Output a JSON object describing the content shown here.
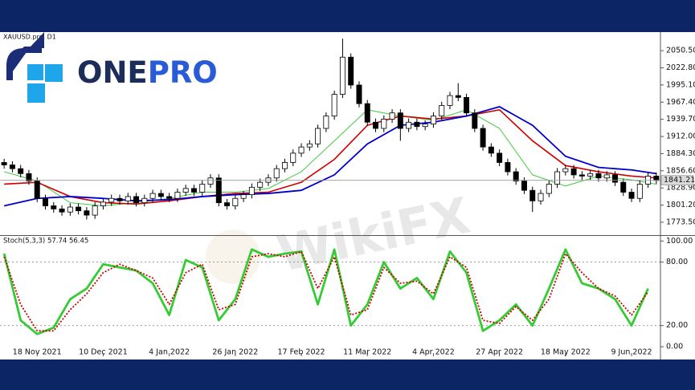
{
  "logo": {
    "part1": "ONE",
    "part2": "PRO"
  },
  "watermark": "WikiFX",
  "chart_data": [
    {
      "type": "candlestick",
      "title": "XAUUSD.pro, D1",
      "up_color": "#ffffff",
      "down_color": "#000000",
      "ylim": [
        1754,
        2074
      ],
      "yticks": [
        {
          "value": 2050.5,
          "label": "2050.50"
        },
        {
          "value": 2022.8,
          "label": "2022.80"
        },
        {
          "value": 1995.1,
          "label": "1995.10"
        },
        {
          "value": 1967.4,
          "label": "1967.40"
        },
        {
          "value": 1939.7,
          "label": "1939.70"
        },
        {
          "value": 1912,
          "label": "1912.00"
        },
        {
          "value": 1884.3,
          "label": "1884.30"
        },
        {
          "value": 1856.6,
          "label": "1856.60"
        },
        {
          "value": 1828.9,
          "label": "1828.90"
        },
        {
          "value": 1801.2,
          "label": "1801.20"
        },
        {
          "value": 1773.5,
          "label": "1773.50"
        }
      ],
      "last_price": 1841.21,
      "categories": [
        null,
        null,
        null,
        null,
        "18 Nov 2021",
        null,
        null,
        null,
        null,
        null,
        null,
        null,
        "10 Dec 2021",
        null,
        null,
        null,
        null,
        null,
        null,
        null,
        "4 Jan 2022",
        null,
        null,
        null,
        null,
        null,
        null,
        null,
        "26 Jan 2022",
        null,
        null,
        null,
        null,
        null,
        null,
        null,
        "17 Feb 2022",
        null,
        null,
        null,
        null,
        null,
        null,
        null,
        "11 Mar 2022",
        null,
        null,
        null,
        null,
        null,
        null,
        null,
        "4 Apr 2022",
        null,
        null,
        null,
        null,
        null,
        null,
        null,
        "27 Apr 2022",
        null,
        null,
        null,
        null,
        null,
        null,
        null,
        "18 May 2022",
        null,
        null,
        null,
        null,
        null,
        null,
        null,
        "9 Jun 2022",
        null,
        null,
        null
      ],
      "ohlc": [
        [
          1870,
          1876,
          1860,
          1866
        ],
        [
          1866,
          1872,
          1854,
          1860
        ],
        [
          1860,
          1866,
          1846,
          1852
        ],
        [
          1852,
          1858,
          1834,
          1840
        ],
        [
          1840,
          1846,
          1806,
          1812
        ],
        [
          1812,
          1818,
          1794,
          1800
        ],
        [
          1800,
          1806,
          1789,
          1795
        ],
        [
          1795,
          1801,
          1784,
          1790
        ],
        [
          1790,
          1804,
          1784,
          1798
        ],
        [
          1798,
          1804,
          1786,
          1792
        ],
        [
          1792,
          1798,
          1778,
          1785
        ],
        [
          1785,
          1806,
          1779,
          1800
        ],
        [
          1800,
          1812,
          1794,
          1806
        ],
        [
          1806,
          1818,
          1800,
          1812
        ],
        [
          1812,
          1818,
          1802,
          1808
        ],
        [
          1808,
          1821,
          1802,
          1815
        ],
        [
          1815,
          1821,
          1799,
          1805
        ],
        [
          1805,
          1818,
          1799,
          1812
        ],
        [
          1812,
          1826,
          1806,
          1820
        ],
        [
          1820,
          1826,
          1809,
          1815
        ],
        [
          1815,
          1821,
          1806,
          1812
        ],
        [
          1812,
          1828,
          1806,
          1822
        ],
        [
          1822,
          1834,
          1816,
          1828
        ],
        [
          1828,
          1834,
          1816,
          1822
        ],
        [
          1822,
          1841,
          1816,
          1835
        ],
        [
          1835,
          1851,
          1829,
          1845
        ],
        [
          1845,
          1851,
          1799,
          1805
        ],
        [
          1805,
          1811,
          1794,
          1800
        ],
        [
          1800,
          1818,
          1794,
          1812
        ],
        [
          1812,
          1824,
          1806,
          1818
        ],
        [
          1818,
          1836,
          1812,
          1830
        ],
        [
          1830,
          1844,
          1824,
          1838
        ],
        [
          1838,
          1851,
          1832,
          1845
        ],
        [
          1845,
          1866,
          1839,
          1860
        ],
        [
          1860,
          1876,
          1854,
          1870
        ],
        [
          1870,
          1891,
          1864,
          1885
        ],
        [
          1885,
          1901,
          1879,
          1895
        ],
        [
          1895,
          1906,
          1889,
          1900
        ],
        [
          1900,
          1931,
          1894,
          1925
        ],
        [
          1925,
          1951,
          1919,
          1945
        ],
        [
          1945,
          1986,
          1939,
          1980
        ],
        [
          1980,
          2070,
          1974,
          2040
        ],
        [
          2040,
          2046,
          1989,
          1995
        ],
        [
          1995,
          2001,
          1959,
          1965
        ],
        [
          1965,
          1971,
          1929,
          1935
        ],
        [
          1935,
          1941,
          1919,
          1925
        ],
        [
          1925,
          1946,
          1919,
          1940
        ],
        [
          1940,
          1956,
          1934,
          1950
        ],
        [
          1950,
          1956,
          1905,
          1925
        ],
        [
          1925,
          1941,
          1919,
          1935
        ],
        [
          1935,
          1941,
          1922,
          1928
        ],
        [
          1928,
          1938,
          1922,
          1932
        ],
        [
          1932,
          1951,
          1926,
          1945
        ],
        [
          1945,
          1968,
          1939,
          1962
        ],
        [
          1962,
          1984,
          1956,
          1978
        ],
        [
          1978,
          1998,
          1969,
          1975
        ],
        [
          1975,
          1981,
          1944,
          1950
        ],
        [
          1950,
          1956,
          1919,
          1925
        ],
        [
          1925,
          1931,
          1889,
          1895
        ],
        [
          1895,
          1901,
          1879,
          1885
        ],
        [
          1885,
          1891,
          1864,
          1870
        ],
        [
          1870,
          1876,
          1849,
          1855
        ],
        [
          1855,
          1861,
          1834,
          1840
        ],
        [
          1840,
          1846,
          1819,
          1825
        ],
        [
          1825,
          1831,
          1790,
          1808
        ],
        [
          1808,
          1826,
          1802,
          1820
        ],
        [
          1820,
          1841,
          1814,
          1835
        ],
        [
          1835,
          1861,
          1829,
          1855
        ],
        [
          1855,
          1866,
          1849,
          1860
        ],
        [
          1860,
          1866,
          1844,
          1850
        ],
        [
          1850,
          1856,
          1842,
          1848
        ],
        [
          1848,
          1858,
          1842,
          1852
        ],
        [
          1852,
          1858,
          1839,
          1845
        ],
        [
          1845,
          1856,
          1839,
          1850
        ],
        [
          1850,
          1856,
          1832,
          1838
        ],
        [
          1838,
          1844,
          1816,
          1822
        ],
        [
          1822,
          1828,
          1806,
          1812
        ],
        [
          1812,
          1841,
          1806,
          1835
        ],
        [
          1835,
          1854,
          1829,
          1848
        ],
        [
          1848,
          1854,
          1835,
          1841
        ]
      ],
      "overlays": [
        {
          "color": "#44cc44",
          "width": 1,
          "x": [
            0,
            4,
            8,
            12,
            16,
            20,
            24,
            28,
            32,
            36,
            40,
            44,
            48,
            52,
            56,
            60,
            64,
            68,
            72,
            76,
            79
          ],
          "values": [
            1855,
            1840,
            1805,
            1800,
            1805,
            1812,
            1822,
            1822,
            1828,
            1855,
            1905,
            1955,
            1945,
            1938,
            1955,
            1925,
            1850,
            1832,
            1848,
            1842,
            1835
          ]
        },
        {
          "color": "#d00000",
          "width": 1.6,
          "x": [
            0,
            4,
            8,
            12,
            16,
            20,
            24,
            28,
            32,
            36,
            40,
            44,
            48,
            52,
            56,
            60,
            64,
            68,
            72,
            76,
            79
          ],
          "values": [
            1835,
            1838,
            1815,
            1805,
            1803,
            1808,
            1815,
            1820,
            1822,
            1838,
            1875,
            1930,
            1945,
            1940,
            1945,
            1955,
            1905,
            1865,
            1855,
            1848,
            1845
          ]
        },
        {
          "color": "#0000cc",
          "width": 1.8,
          "x": [
            0,
            4,
            8,
            12,
            16,
            20,
            24,
            28,
            32,
            36,
            40,
            44,
            48,
            52,
            56,
            60,
            64,
            68,
            72,
            76,
            79
          ],
          "values": [
            1800,
            1812,
            1815,
            1812,
            1808,
            1810,
            1815,
            1818,
            1820,
            1825,
            1850,
            1900,
            1930,
            1935,
            1945,
            1960,
            1930,
            1880,
            1862,
            1858,
            1852
          ]
        }
      ]
    },
    {
      "type": "line",
      "title": "Stoch(5,3,3) 57.74 56.45",
      "ylim": [
        -6,
        104
      ],
      "yticks": [
        {
          "value": 100,
          "label": "100.00"
        },
        {
          "value": 80,
          "label": "80.00"
        },
        {
          "value": 20,
          "label": "20.00"
        },
        {
          "value": 0,
          "label": "0.00"
        }
      ],
      "levels": [
        80,
        20
      ],
      "series": [
        {
          "color": "#33cc33",
          "style": "solid",
          "x": [
            0,
            2,
            4,
            6,
            8,
            10,
            12,
            14,
            16,
            18,
            20,
            22,
            24,
            26,
            28,
            30,
            32,
            34,
            36,
            38,
            40,
            42,
            44,
            46,
            48,
            50,
            52,
            54,
            56,
            58,
            60,
            62,
            64,
            66,
            68,
            70,
            72,
            74,
            76,
            78
          ],
          "values": [
            88,
            25,
            12,
            18,
            45,
            55,
            78,
            75,
            72,
            60,
            30,
            82,
            75,
            25,
            45,
            92,
            85,
            88,
            90,
            40,
            92,
            20,
            40,
            80,
            55,
            65,
            45,
            90,
            70,
            15,
            25,
            40,
            20,
            55,
            92,
            60,
            55,
            45,
            20,
            55
          ]
        },
        {
          "color": "#cc0000",
          "style": "dotted",
          "x": [
            0,
            2,
            4,
            6,
            8,
            10,
            12,
            14,
            16,
            18,
            20,
            22,
            24,
            26,
            28,
            30,
            32,
            34,
            36,
            38,
            40,
            42,
            44,
            46,
            48,
            50,
            52,
            54,
            56,
            58,
            60,
            62,
            64,
            66,
            68,
            70,
            72,
            74,
            76,
            78
          ],
          "values": [
            85,
            40,
            15,
            15,
            35,
            50,
            70,
            78,
            72,
            65,
            40,
            70,
            78,
            35,
            40,
            85,
            88,
            85,
            90,
            55,
            85,
            30,
            35,
            75,
            60,
            62,
            50,
            85,
            75,
            25,
            22,
            38,
            25,
            45,
            88,
            70,
            55,
            48,
            30,
            52
          ]
        }
      ]
    }
  ]
}
